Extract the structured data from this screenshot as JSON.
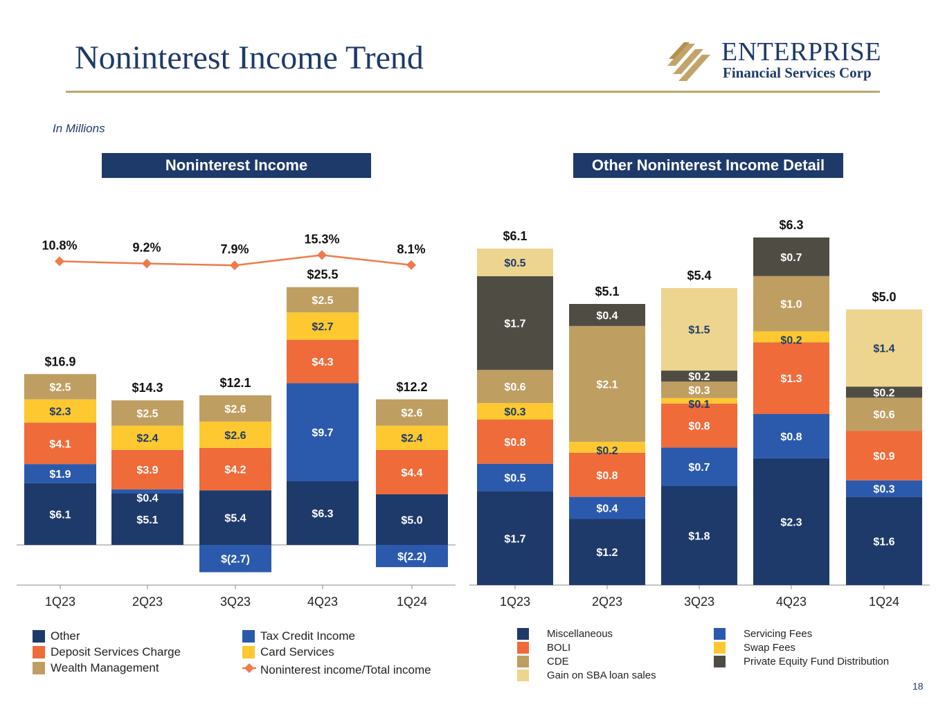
{
  "title": "Noninterest Income Trend",
  "logo": {
    "name": "ENTERPRISE",
    "subtitle": "Financial Services Corp"
  },
  "units_note": "In Millions",
  "page_number": "18",
  "colors": {
    "navy": "#1e3a6a",
    "blue": "#2b5aad",
    "orange": "#ef6b3a",
    "yellow": "#fdc830",
    "tan": "#bf9e62",
    "light_tan": "#edd58f",
    "dark_gray": "#4f4c43",
    "rule": "#c2a46b",
    "line_marker": "#ef7a4a"
  },
  "left_panel": {
    "header": "Noninterest Income",
    "legend": [
      {
        "label": "Other",
        "color": "#1e3a6a",
        "kind": "box"
      },
      {
        "label": "Deposit Services Charge",
        "color": "#ef6b3a",
        "kind": "box"
      },
      {
        "label": "Wealth Management",
        "color": "#bf9e62",
        "kind": "box"
      },
      {
        "label": "Tax Credit Income",
        "color": "#2b5aad",
        "kind": "box"
      },
      {
        "label": "Card Services",
        "color": "#fdc830",
        "kind": "box"
      },
      {
        "label": "Noninterest income/Total income",
        "color": "#ef7a4a",
        "kind": "line"
      }
    ]
  },
  "right_panel": {
    "header": "Other Noninterest Income Detail",
    "legend": [
      {
        "label": "Miscellaneous",
        "color": "#1e3a6a"
      },
      {
        "label": "BOLI",
        "color": "#ef6b3a"
      },
      {
        "label": "CDE",
        "color": "#bf9e62"
      },
      {
        "label": "Gain on SBA loan sales",
        "color": "#edd58f"
      },
      {
        "label": "Servicing Fees",
        "color": "#2b5aad"
      },
      {
        "label": "Swap Fees",
        "color": "#fdc830"
      },
      {
        "label": "Private Equity Fund Distribution",
        "color": "#4f4c43"
      }
    ]
  },
  "chart_data": [
    {
      "type": "bar",
      "stacked": true,
      "title": "Noninterest Income",
      "categories": [
        "1Q23",
        "2Q23",
        "3Q23",
        "4Q23",
        "1Q24"
      ],
      "series": [
        {
          "name": "Other",
          "values": [
            6.1,
            5.1,
            5.4,
            6.3,
            5.0
          ],
          "labels": [
            "$6.1",
            "$5.1",
            "$5.4",
            "$6.3",
            "$5.0"
          ],
          "color": "#1e3a6a",
          "text_color": "#ffffff"
        },
        {
          "name": "Tax Credit Income",
          "values": [
            1.9,
            0.4,
            -2.7,
            9.7,
            -2.2
          ],
          "labels": [
            "$1.9",
            "$0.4",
            "$(2.7)",
            "$9.7",
            "$(2.2)"
          ],
          "color": "#2b5aad",
          "text_color": "#ffffff"
        },
        {
          "name": "Deposit Services Charge",
          "values": [
            4.1,
            3.9,
            4.2,
            4.3,
            4.4
          ],
          "labels": [
            "$4.1",
            "$3.9",
            "$4.2",
            "$4.3",
            "$4.4"
          ],
          "color": "#ef6b3a",
          "text_color": "#ffffff"
        },
        {
          "name": "Card Services",
          "values": [
            2.3,
            2.4,
            2.6,
            2.7,
            2.4
          ],
          "labels": [
            "$2.3",
            "$2.4",
            "$2.6",
            "$2.7",
            "$2.4"
          ],
          "color": "#fdc830",
          "text_color": "#1e3a6a"
        },
        {
          "name": "Wealth Management",
          "values": [
            2.5,
            2.5,
            2.6,
            2.5,
            2.6
          ],
          "labels": [
            "$2.5",
            "$2.5",
            "$2.6",
            "$2.5",
            "$2.6"
          ],
          "color": "#bf9e62",
          "text_color": "#ffffff"
        }
      ],
      "totals": [
        "$16.9",
        "$14.3",
        "$12.1",
        "$25.5",
        "$12.2"
      ],
      "line_series": {
        "name": "Noninterest income/Total income",
        "values": [
          10.8,
          9.2,
          7.9,
          15.3,
          8.1
        ],
        "labels": [
          "10.8%",
          "9.2%",
          "7.9%",
          "15.3%",
          "8.1%"
        ],
        "color": "#ef7a4a"
      },
      "xlabel": "",
      "ylabel": ""
    },
    {
      "type": "bar",
      "stacked": true,
      "title": "Other Noninterest Income Detail",
      "categories": [
        "1Q23",
        "2Q23",
        "3Q23",
        "4Q23",
        "1Q24"
      ],
      "series": [
        {
          "name": "Miscellaneous",
          "values": [
            1.7,
            1.2,
            1.8,
            2.3,
            1.6
          ],
          "labels": [
            "$1.7",
            "$1.2",
            "$1.8",
            "$2.3",
            "$1.6"
          ],
          "color": "#1e3a6a",
          "text_color": "#ffffff"
        },
        {
          "name": "Servicing Fees",
          "values": [
            0.5,
            0.4,
            0.7,
            0.8,
            0.3
          ],
          "labels": [
            "$0.5",
            "$0.4",
            "$0.7",
            "$0.8",
            "$0.3"
          ],
          "color": "#2b5aad",
          "text_color": "#ffffff"
        },
        {
          "name": "BOLI",
          "values": [
            0.8,
            0.8,
            0.8,
            1.3,
            0.9
          ],
          "labels": [
            "$0.8",
            "$0.8",
            "$0.8",
            "$1.3",
            "$0.9"
          ],
          "color": "#ef6b3a",
          "text_color": "#ffffff"
        },
        {
          "name": "Swap Fees",
          "values": [
            0.3,
            0.2,
            0.1,
            0.2,
            0.0
          ],
          "labels": [
            "$0.3",
            "$0.2",
            "$0.1",
            "$0.2",
            ""
          ],
          "color": "#fdc830",
          "text_color": "#1e3a6a"
        },
        {
          "name": "CDE",
          "values": [
            0.6,
            2.1,
            0.3,
            1.0,
            0.6
          ],
          "labels": [
            "$0.6",
            "$2.1",
            "$0.3",
            "$1.0",
            "$0.6"
          ],
          "color": "#bf9e62",
          "text_color": "#ffffff"
        },
        {
          "name": "Private Equity Fund Distribution",
          "values": [
            1.7,
            0.4,
            0.2,
            0.7,
            0.2
          ],
          "labels": [
            "$1.7",
            "$0.4",
            "$0.2",
            "$0.7",
            "$0.2"
          ],
          "color": "#4f4c43",
          "text_color": "#ffffff"
        },
        {
          "name": "Gain on SBA loan sales",
          "values": [
            0.5,
            0.0,
            1.5,
            0.0,
            1.4
          ],
          "labels": [
            "$0.5",
            "",
            "$1.5",
            "",
            "$1.4"
          ],
          "color": "#edd58f",
          "text_color": "#1e3a6a"
        }
      ],
      "totals": [
        "$6.1",
        "$5.1",
        "$5.4",
        "$6.3",
        "$5.0"
      ],
      "xlabel": "",
      "ylabel": ""
    }
  ]
}
